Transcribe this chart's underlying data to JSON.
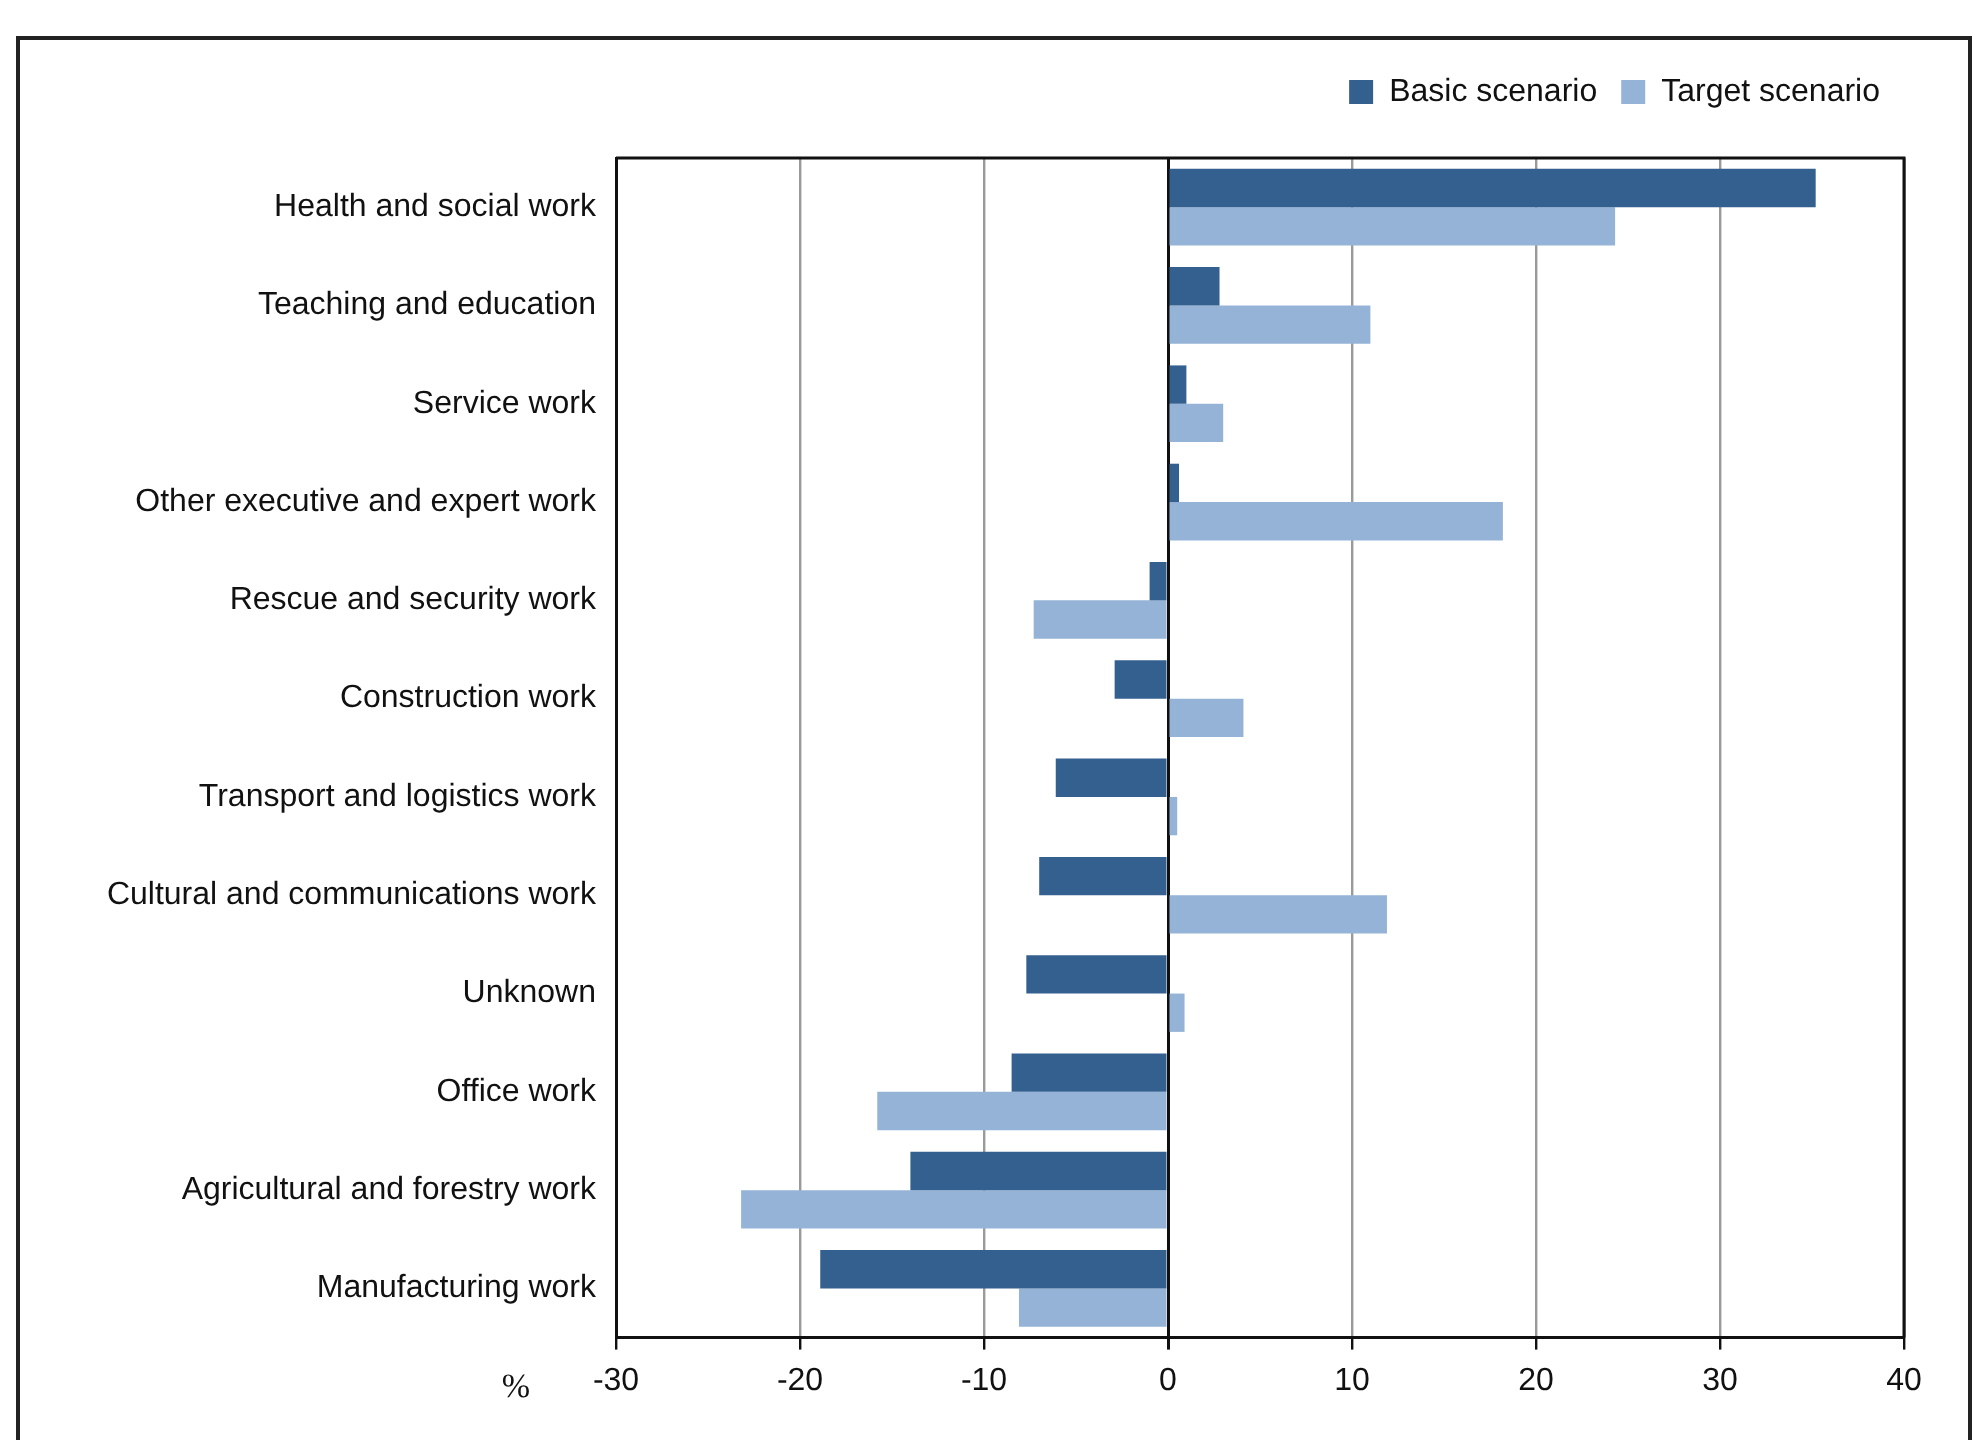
{
  "chart_data": {
    "type": "bar",
    "orientation": "horizontal",
    "categories": [
      "Health and social work",
      "Teaching and education",
      "Service work",
      "Other executive and expert work",
      "Rescue and security work",
      "Construction work",
      "Transport and logistics work",
      "Cultural and communications work",
      "Unknown",
      "Office work",
      "Agricultural and forestry work",
      "Manufacturing work"
    ],
    "series": [
      {
        "name": "Basic scenario",
        "color": "#34608f",
        "values": [
          35.2,
          2.8,
          1.0,
          0.6,
          -1.0,
          -2.9,
          -6.1,
          -7.0,
          -7.7,
          -8.5,
          -14.0,
          -18.9
        ]
      },
      {
        "name": "Target scenario",
        "color": "#95b3d7",
        "values": [
          24.3,
          11.0,
          3.0,
          18.2,
          -7.3,
          4.1,
          0.5,
          11.9,
          0.9,
          -15.8,
          -23.2,
          -8.1
        ]
      }
    ],
    "xlabel": "%",
    "xlim": [
      -30,
      40
    ],
    "xticks": [
      -30,
      -20,
      -10,
      0,
      10,
      20,
      30,
      40
    ],
    "grid": "x",
    "legend": "top right"
  }
}
